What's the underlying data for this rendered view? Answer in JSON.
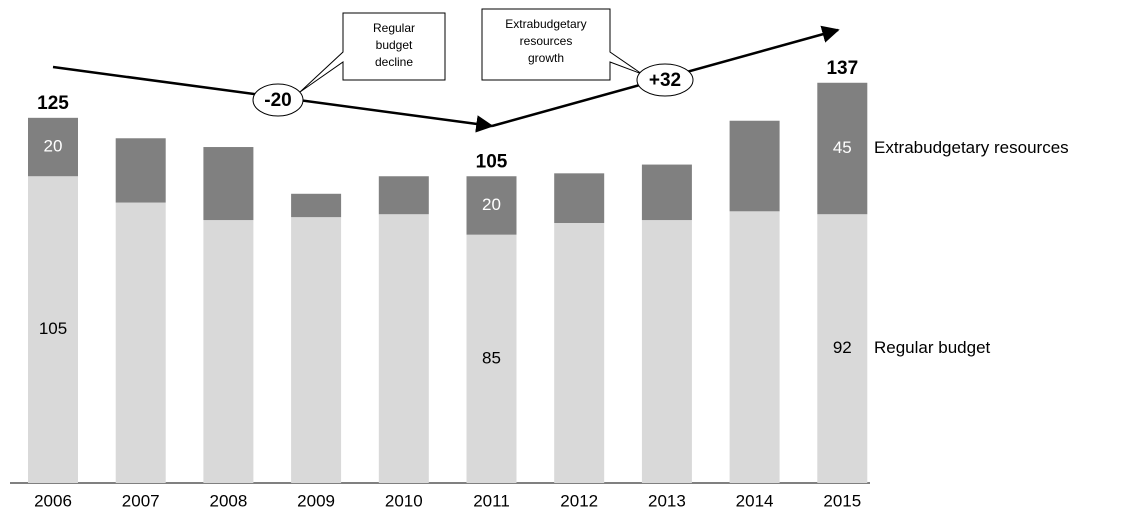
{
  "chart_data": {
    "type": "stacked_bar",
    "categories": [
      "2006",
      "2007",
      "2008",
      "2009",
      "2010",
      "2011",
      "2012",
      "2013",
      "2014",
      "2015"
    ],
    "series": [
      {
        "name": "Regular budget",
        "color": "#d9d9d9",
        "label_color": "#000000",
        "values": [
          105,
          96,
          90,
          91,
          92,
          85,
          89,
          90,
          93,
          92
        ],
        "value_labels": [
          "105",
          null,
          null,
          null,
          null,
          "85",
          null,
          null,
          null,
          "92"
        ]
      },
      {
        "name": "Extrabudgetary resources",
        "color": "#808080",
        "label_color": "#ffffff",
        "values": [
          20,
          22,
          25,
          8,
          13,
          20,
          17,
          19,
          31,
          45
        ],
        "value_labels": [
          "20",
          null,
          null,
          null,
          null,
          "20",
          null,
          null,
          null,
          "45"
        ]
      }
    ],
    "totals": [
      125,
      null,
      null,
      null,
      null,
      105,
      null,
      null,
      null,
      137
    ],
    "ylim": [
      0,
      140
    ],
    "annotations": [
      {
        "text": "-20",
        "callout": [
          "Regular",
          "budget",
          "decline"
        ]
      },
      {
        "text": "+32",
        "callout": [
          "Extrabudgetary",
          "resources",
          "growth"
        ]
      }
    ]
  }
}
